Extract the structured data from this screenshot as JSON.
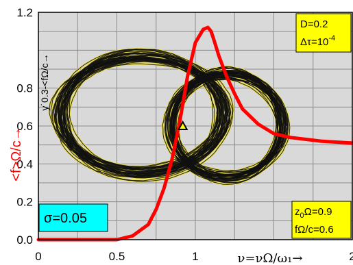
{
  "chart_data": {
    "type": "line",
    "xlim": [
      0,
      2
    ],
    "ylim": [
      0,
      1.2
    ],
    "x_ticks": [
      "0",
      "0.5",
      "1",
      "2"
    ],
    "y_ticks": [
      "0.0",
      "0.2",
      "0.4",
      "0.6",
      "0.8",
      "1.2"
    ],
    "y_label_red": "<f>Ω/c→",
    "y_label_black": "y˙0.3-<fΩ/c→",
    "x_label": "ν=νΩ/ω₁→",
    "grid": true,
    "colors": {
      "curve": "#ff0000",
      "orbit": "#111111",
      "orbit_outline": "#f0e24a",
      "param_box": "#ffff00",
      "sigma_box": "#00ffff",
      "grid": "#8a8a8a",
      "background": "#d9d9d9"
    },
    "series": [
      {
        "x": [
          0.0,
          0.5,
          0.6,
          0.7,
          0.75,
          0.8,
          0.85,
          0.9,
          0.95,
          1.0,
          1.05,
          1.08,
          1.1,
          1.12,
          1.15,
          1.2,
          1.25,
          1.3,
          1.4,
          1.5,
          1.6,
          1.7,
          1.8,
          2.0
        ],
        "y": [
          0.0,
          0.0,
          0.02,
          0.08,
          0.16,
          0.27,
          0.42,
          0.62,
          0.86,
          1.04,
          1.11,
          1.12,
          1.1,
          1.05,
          0.97,
          0.86,
          0.77,
          0.69,
          0.61,
          0.56,
          0.54,
          0.53,
          0.52,
          0.51
        ]
      }
    ],
    "orbits": [
      {
        "cx": 0.66,
        "cy": 0.66,
        "rx": 0.55,
        "ry": 0.33
      },
      {
        "cx": 1.2,
        "cy": 0.6,
        "rx": 0.38,
        "ry": 0.29
      }
    ],
    "fixed_point": {
      "x": 0.92,
      "y": 0.6
    },
    "annotations": {
      "param_box": {
        "line1": "D=0.2",
        "line2_pre": "Δτ=10",
        "line2_sup": "-4"
      },
      "sigma_box": {
        "text": "σ=0.05"
      },
      "z0_box": {
        "line1_pre": "z",
        "line1_sub": "0",
        "line1_post": "Ω=0.9",
        "line2": "fΩ/c=0.6"
      }
    }
  }
}
